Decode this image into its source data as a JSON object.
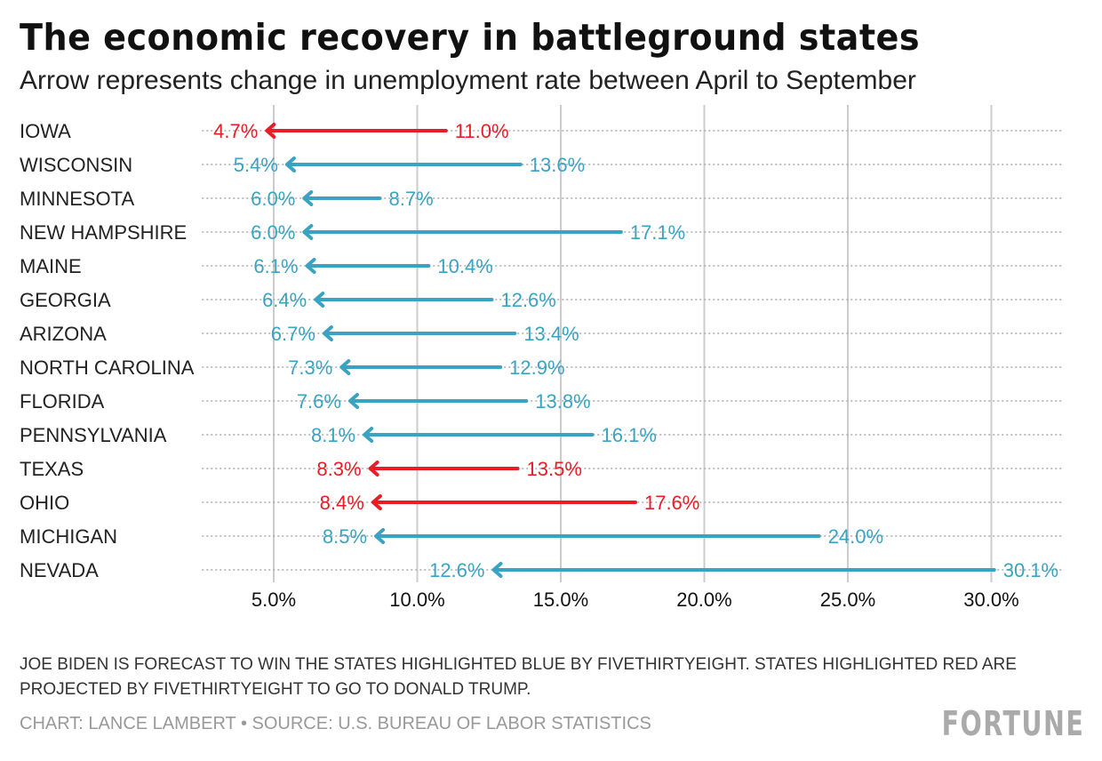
{
  "colors": {
    "red": "#e81e26",
    "blue": "#3ba3c2",
    "grid": "#cccccc"
  },
  "chart_data": {
    "type": "arrow",
    "title": "The economic recovery in battleground states",
    "subtitle": "Arrow represents change in unemployment rate between April to September",
    "xlim": [
      2.5,
      32.5
    ],
    "xticks": [
      5,
      10,
      15,
      20,
      25,
      30
    ],
    "xtick_labels": [
      "5.0%",
      "10.0%",
      "15.0%",
      "20.0%",
      "25.0%",
      "30.0%"
    ],
    "rows": [
      {
        "state": "IOWA",
        "april": 11.0,
        "september": 4.7,
        "april_label": "11.0%",
        "september_label": "4.7%",
        "party": "red"
      },
      {
        "state": "WISCONSIN",
        "april": 13.6,
        "september": 5.4,
        "april_label": "13.6%",
        "september_label": "5.4%",
        "party": "blue"
      },
      {
        "state": "MINNESOTA",
        "april": 8.7,
        "september": 6.0,
        "april_label": "8.7%",
        "september_label": "6.0%",
        "party": "blue"
      },
      {
        "state": "NEW HAMPSHIRE",
        "april": 17.1,
        "september": 6.0,
        "april_label": "17.1%",
        "september_label": "6.0%",
        "party": "blue"
      },
      {
        "state": "MAINE",
        "april": 10.4,
        "september": 6.1,
        "april_label": "10.4%",
        "september_label": "6.1%",
        "party": "blue"
      },
      {
        "state": "GEORGIA",
        "april": 12.6,
        "september": 6.4,
        "april_label": "12.6%",
        "september_label": "6.4%",
        "party": "blue"
      },
      {
        "state": "ARIZONA",
        "april": 13.4,
        "september": 6.7,
        "april_label": "13.4%",
        "september_label": "6.7%",
        "party": "blue"
      },
      {
        "state": "NORTH CAROLINA",
        "april": 12.9,
        "september": 7.3,
        "april_label": "12.9%",
        "september_label": "7.3%",
        "party": "blue"
      },
      {
        "state": "FLORIDA",
        "april": 13.8,
        "september": 7.6,
        "april_label": "13.8%",
        "september_label": "7.6%",
        "party": "blue"
      },
      {
        "state": "PENNSYLVANIA",
        "april": 16.1,
        "september": 8.1,
        "april_label": "16.1%",
        "september_label": "8.1%",
        "party": "blue"
      },
      {
        "state": "TEXAS",
        "april": 13.5,
        "september": 8.3,
        "april_label": "13.5%",
        "september_label": "8.3%",
        "party": "red"
      },
      {
        "state": "OHIO",
        "april": 17.6,
        "september": 8.4,
        "april_label": "17.6%",
        "september_label": "8.4%",
        "party": "red"
      },
      {
        "state": "MICHIGAN",
        "april": 24.0,
        "september": 8.5,
        "april_label": "24.0%",
        "september_label": "8.5%",
        "party": "blue"
      },
      {
        "state": "NEVADA",
        "april": 30.1,
        "september": 12.6,
        "april_label": "30.1%",
        "september_label": "12.6%",
        "party": "blue"
      }
    ]
  },
  "note": "JOE BIDEN IS FORECAST TO WIN THE STATES HIGHLIGHTED BLUE BY FIVETHIRTYEIGHT. STATES HIGHLIGHTED RED ARE PROJECTED BY FIVETHIRTYEIGHT TO GO TO DONALD TRUMP.",
  "credit": "CHART: LANCE LAMBERT • SOURCE: U.S. BUREAU OF LABOR STATISTICS",
  "logo": "FORTUNE"
}
